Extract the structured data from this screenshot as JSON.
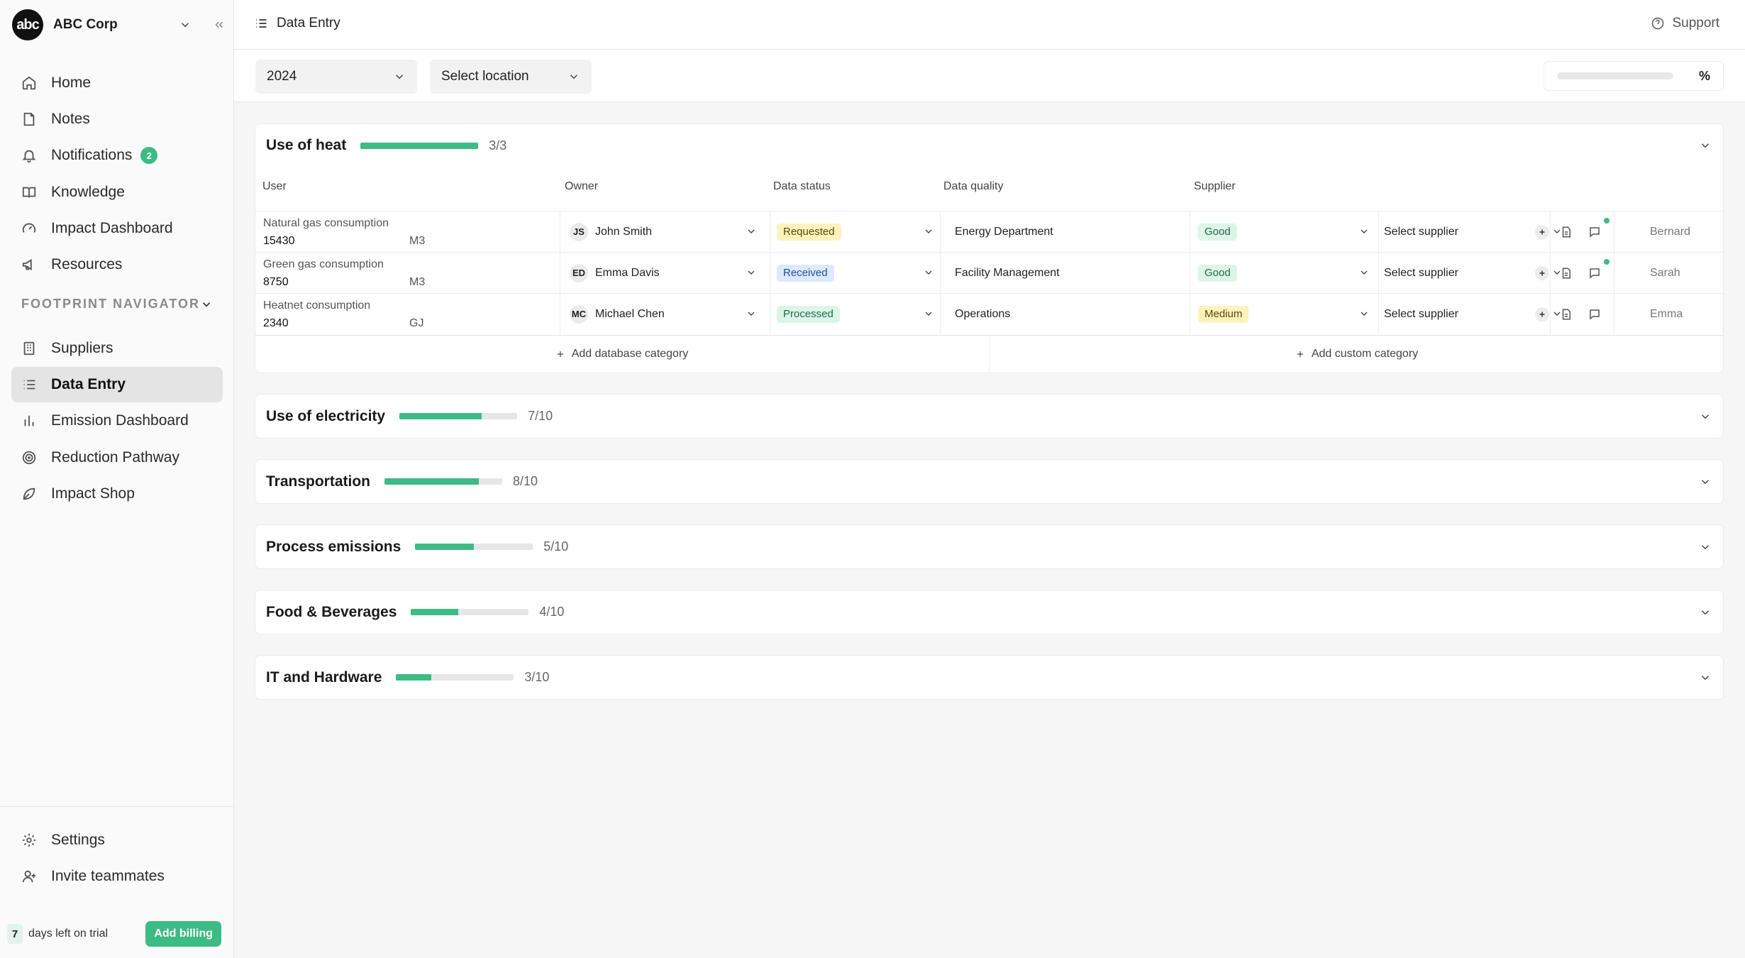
{
  "org": {
    "logo_text": "abc",
    "name": "ABC Corp"
  },
  "nav": {
    "items": [
      {
        "label": "Home"
      },
      {
        "label": "Notes"
      },
      {
        "label": "Notifications",
        "badge": "2"
      },
      {
        "label": "Knowledge"
      },
      {
        "label": "Impact Dashboard"
      },
      {
        "label": "Resources"
      }
    ],
    "section_label": "FOOTPRINT NAVIGATOR",
    "section_items": [
      {
        "label": "Suppliers"
      },
      {
        "label": "Data Entry"
      },
      {
        "label": "Emission Dashboard"
      },
      {
        "label": "Reduction Pathway"
      },
      {
        "label": "Impact Shop"
      }
    ],
    "bottom_items": [
      {
        "label": "Settings"
      },
      {
        "label": "Invite teammates"
      }
    ]
  },
  "trial": {
    "days": "7",
    "text": "days left on trial",
    "billing_label": "Add billing"
  },
  "header": {
    "title": "Data Entry",
    "support_label": "Support"
  },
  "filters": {
    "year": "2024",
    "location": "Select location",
    "progress_unit": "%",
    "progress": 0
  },
  "heat": {
    "title": "Use of heat",
    "count": "3/3",
    "progress": 1.0,
    "columns": {
      "user": "User",
      "owner": "Owner",
      "status": "Data status",
      "quality": "Data quality",
      "supplier": "Supplier"
    },
    "rows": [
      {
        "label": "Natural gas consumption",
        "value": "15430",
        "unit": "M3",
        "owner_initials": "JS",
        "owner": "John Smith",
        "status": "Requested",
        "department": "Energy Department",
        "quality": "Good",
        "supplier": "Select supplier",
        "assignee": "Bernard",
        "has_comment": true
      },
      {
        "label": "Green gas consumption",
        "value": "8750",
        "unit": "M3",
        "owner_initials": "ED",
        "owner": "Emma Davis",
        "status": "Received",
        "department": "Facility Management",
        "quality": "Good",
        "supplier": "Select supplier",
        "assignee": "Sarah",
        "has_comment": true
      },
      {
        "label": "Heatnet consumption",
        "value": "2340",
        "unit": "GJ",
        "owner_initials": "MC",
        "owner": "Michael Chen",
        "status": "Processed",
        "department": "Operations",
        "quality": "Medium",
        "supplier": "Select supplier",
        "assignee": "Emma",
        "has_comment": false
      }
    ],
    "add_database": "Add database category",
    "add_custom": "Add custom category"
  },
  "categories": [
    {
      "title": "Use of electricity",
      "count": "7/10",
      "progress": 0.7
    },
    {
      "title": "Transportation",
      "count": "8/10",
      "progress": 0.8
    },
    {
      "title": "Process emissions",
      "count": "5/10",
      "progress": 0.5
    },
    {
      "title": "Food & Beverages",
      "count": "4/10",
      "progress": 0.4
    },
    {
      "title": "IT and Hardware",
      "count": "3/10",
      "progress": 0.3
    }
  ],
  "colors": {
    "accent": "#3dbb85",
    "requested": "#fff2bd",
    "received": "#dce9ff",
    "processed": "#dcf5e7"
  },
  "icons": [
    "home-icon",
    "notes-icon",
    "bell-icon",
    "book-icon",
    "gauge-icon",
    "megaphone-icon",
    "building-icon",
    "list-icon",
    "bar-chart-icon",
    "target-icon",
    "leaf-icon",
    "gear-icon",
    "user-plus-icon",
    "help-circle-icon",
    "chevron-down-icon",
    "plus-icon",
    "document-icon",
    "comment-icon"
  ]
}
